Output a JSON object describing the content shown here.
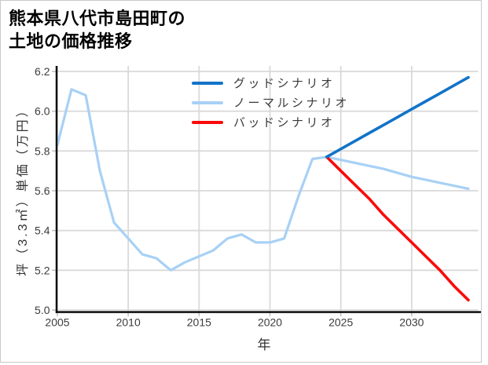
{
  "title": {
    "line1": "熊本県八代市島田町の",
    "line2": "土地の価格推移"
  },
  "axis_style": {
    "spine_color": "#000000",
    "grid_color": "#d9d9d9",
    "tick_mark_color": "#c2c2c2",
    "tick_label_color": "#3c3c3c"
  },
  "chart_data": {
    "type": "line",
    "title": "熊本県八代市島田町の土地の価格推移",
    "xlabel": "年",
    "ylabel": "坪（3.3㎡）単価（万円）",
    "xlim": [
      2005,
      2034.7
    ],
    "ylim": [
      5.0,
      6.2
    ],
    "x_ticks": [
      2005,
      2010,
      2015,
      2020,
      2025,
      2030
    ],
    "y_ticks": [
      5.0,
      5.2,
      5.4,
      5.6,
      5.8,
      6.0,
      6.2
    ],
    "grid": true,
    "legend_position": "top-center-inside",
    "series": [
      {
        "name": "グッドシナリオ",
        "key": "good-scenario",
        "color": "#1273c8",
        "width": 3.6,
        "z": 3,
        "x": [
          2024,
          2025,
          2026,
          2027,
          2028,
          2029,
          2030,
          2031,
          2032,
          2033,
          2034
        ],
        "y": [
          5.77,
          5.81,
          5.85,
          5.89,
          5.93,
          5.97,
          6.01,
          6.05,
          6.09,
          6.13,
          6.17
        ]
      },
      {
        "name": "ノーマルシナリオ",
        "key": "normal-scenario",
        "color": "#a8d1f5",
        "width": 3.2,
        "z": 1,
        "x": [
          2005,
          2006,
          2007,
          2008,
          2009,
          2010,
          2011,
          2012,
          2013,
          2014,
          2015,
          2016,
          2017,
          2018,
          2019,
          2020,
          2021,
          2022,
          2023,
          2024,
          2025,
          2026,
          2027,
          2028,
          2029,
          2030,
          2031,
          2032,
          2033,
          2034
        ],
        "y": [
          5.83,
          6.11,
          6.08,
          5.7,
          5.44,
          5.36,
          5.28,
          5.26,
          5.2,
          5.24,
          5.27,
          5.3,
          5.36,
          5.38,
          5.34,
          5.34,
          5.36,
          5.57,
          5.76,
          5.77,
          5.755,
          5.74,
          5.725,
          5.71,
          5.69,
          5.67,
          5.655,
          5.64,
          5.625,
          5.61
        ]
      },
      {
        "name": "バッドシナリオ",
        "key": "bad-scenario",
        "color": "#fa0a0a",
        "width": 3.6,
        "z": 2,
        "x": [
          2024,
          2025,
          2026,
          2027,
          2028,
          2029,
          2030,
          2031,
          2032,
          2033,
          2034
        ],
        "y": [
          5.77,
          5.7,
          5.63,
          5.56,
          5.48,
          5.41,
          5.34,
          5.27,
          5.2,
          5.12,
          5.05
        ]
      }
    ]
  }
}
